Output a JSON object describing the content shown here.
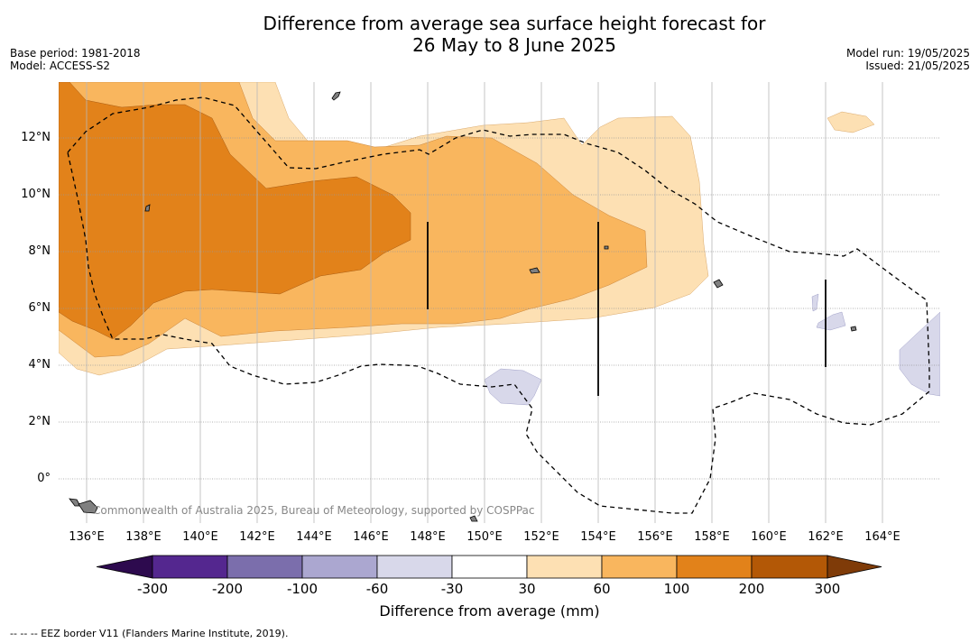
{
  "title_line1": "Difference from average sea surface height forecast for",
  "title_line2": "26 May to 8 June 2025",
  "base_period": "Base period: 1981-2018",
  "model": "Model: ACCESS-S2",
  "model_run": "Model run: 19/05/2025",
  "issued": "Issued: 21/05/2025",
  "copyright": "Commonwealth of Australia 2025, Bureau of Meteorology, supported by COSPPac",
  "footnote": "-- -- -- EEZ border V11 (Flanders Marine Institute, 2019).",
  "y_axis": {
    "ticks": [
      "12°N",
      "10°N",
      "8°N",
      "6°N",
      "4°N",
      "2°N",
      "0°"
    ]
  },
  "x_axis": {
    "ticks": [
      "136°E",
      "138°E",
      "140°E",
      "142°E",
      "144°E",
      "146°E",
      "148°E",
      "150°E",
      "152°E",
      "154°E",
      "156°E",
      "158°E",
      "160°E",
      "162°E",
      "164°E"
    ]
  },
  "colorbar": {
    "title": "Difference from average (mm)",
    "labels": [
      "-300",
      "-200",
      "-100",
      "-60",
      "-30",
      "30",
      "60",
      "100",
      "200",
      "300"
    ],
    "colors": [
      "#2d0a4e",
      "#54278f",
      "#7b6eac",
      "#aba7d0",
      "#d8d8ea",
      "#ffffff",
      "#fde0b3",
      "#f9b65e",
      "#e2821a",
      "#b35806",
      "#7f3b08"
    ]
  },
  "map_colors": {
    "band_30_60": "#fde0b3",
    "band_60_100": "#f9b65e",
    "band_100_200": "#e2821a",
    "band_neg30_neg60": "#d8d8ea",
    "land": "#808080"
  }
}
